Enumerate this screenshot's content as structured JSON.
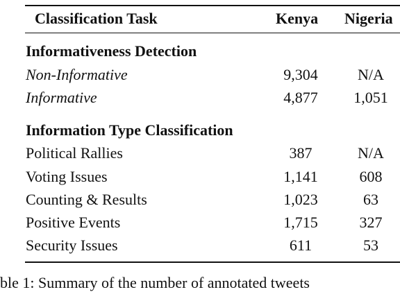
{
  "table": {
    "headers": {
      "task": "Classification Task",
      "kenya": "Kenya",
      "nigeria": "Nigeria"
    },
    "sections": [
      {
        "title": "Informativeness Detection",
        "rows": [
          {
            "label": "Non-Informative",
            "kenya": "9,304",
            "nigeria": "N/A"
          },
          {
            "label": "Informative",
            "kenya": "4,877",
            "nigeria": "1,051"
          }
        ]
      },
      {
        "title": "Information Type Classification",
        "rows": [
          {
            "label": "Political Rallies",
            "kenya": "387",
            "nigeria": "N/A"
          },
          {
            "label": "Voting Issues",
            "kenya": "1,141",
            "nigeria": "608"
          },
          {
            "label": "Counting & Results",
            "kenya": "1,023",
            "nigeria": "63"
          },
          {
            "label": "Positive Events",
            "kenya": "1,715",
            "nigeria": "327"
          },
          {
            "label": "Security Issues",
            "kenya": "611",
            "nigeria": "53"
          }
        ]
      }
    ]
  },
  "caption": "ble 1: Summary of the number of annotated tweets"
}
